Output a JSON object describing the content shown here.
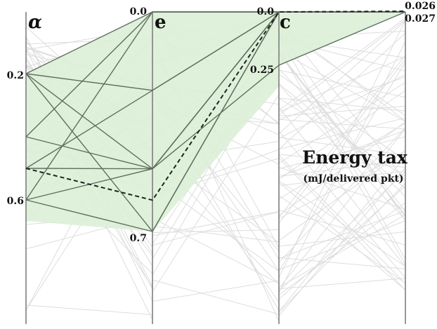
{
  "chart_data": {
    "type": "parallel-coordinates",
    "axes": [
      {
        "name": "α",
        "ticks": [
          {
            "value": 0.2,
            "label": "0.2"
          },
          {
            "value": 0.6,
            "label": "0.6"
          }
        ]
      },
      {
        "name": "e",
        "ticks": [
          {
            "value": 0.0,
            "label": "0.0"
          },
          {
            "value": 0.7,
            "label": "0.7"
          }
        ]
      },
      {
        "name": "c",
        "ticks": [
          {
            "value": 0.0,
            "label": "0.0"
          },
          {
            "value": 0.25,
            "label": "0.25"
          }
        ]
      },
      {
        "name": "",
        "ticks": [
          {
            "value": 0.026,
            "label": "0.026"
          },
          {
            "value": 0.027,
            "label": "0.027"
          }
        ]
      }
    ],
    "annotation": {
      "title": "Energy tax",
      "subtitle": "(mJ/delivered pkt)"
    },
    "highlighted_lines": [
      {
        "values": [
          0.2,
          0.0,
          0.0,
          0.027
        ]
      },
      {
        "values": [
          0.2,
          0.25,
          0.0,
          0.027
        ]
      },
      {
        "values": [
          0.2,
          0.7,
          0.0,
          0.027
        ]
      },
      {
        "values": [
          0.2,
          0.5,
          0.0,
          0.027
        ]
      },
      {
        "values": [
          0.4,
          0.0,
          0.0,
          0.027
        ]
      },
      {
        "values": [
          0.4,
          0.5,
          0.25,
          0.027
        ]
      },
      {
        "values": [
          0.5,
          0.5,
          0.0,
          0.027
        ]
      },
      {
        "values": [
          0.5,
          0.25,
          0.0,
          0.027
        ]
      },
      {
        "values": [
          0.6,
          0.0,
          0.0,
          0.027
        ]
      },
      {
        "values": [
          0.6,
          0.5,
          0.0,
          0.027
        ]
      },
      {
        "values": [
          0.6,
          0.7,
          0.0,
          0.027
        ]
      }
    ],
    "best_line": {
      "values": [
        0.5,
        0.6,
        0.0,
        0.026
      ],
      "style": "dashed"
    },
    "colors": {
      "axis": "#777777",
      "background_lines": "#dddddd",
      "highlight_fill": "#dcefd6",
      "highlight_line": "#5f6f5f",
      "best_line": "#222222"
    }
  }
}
